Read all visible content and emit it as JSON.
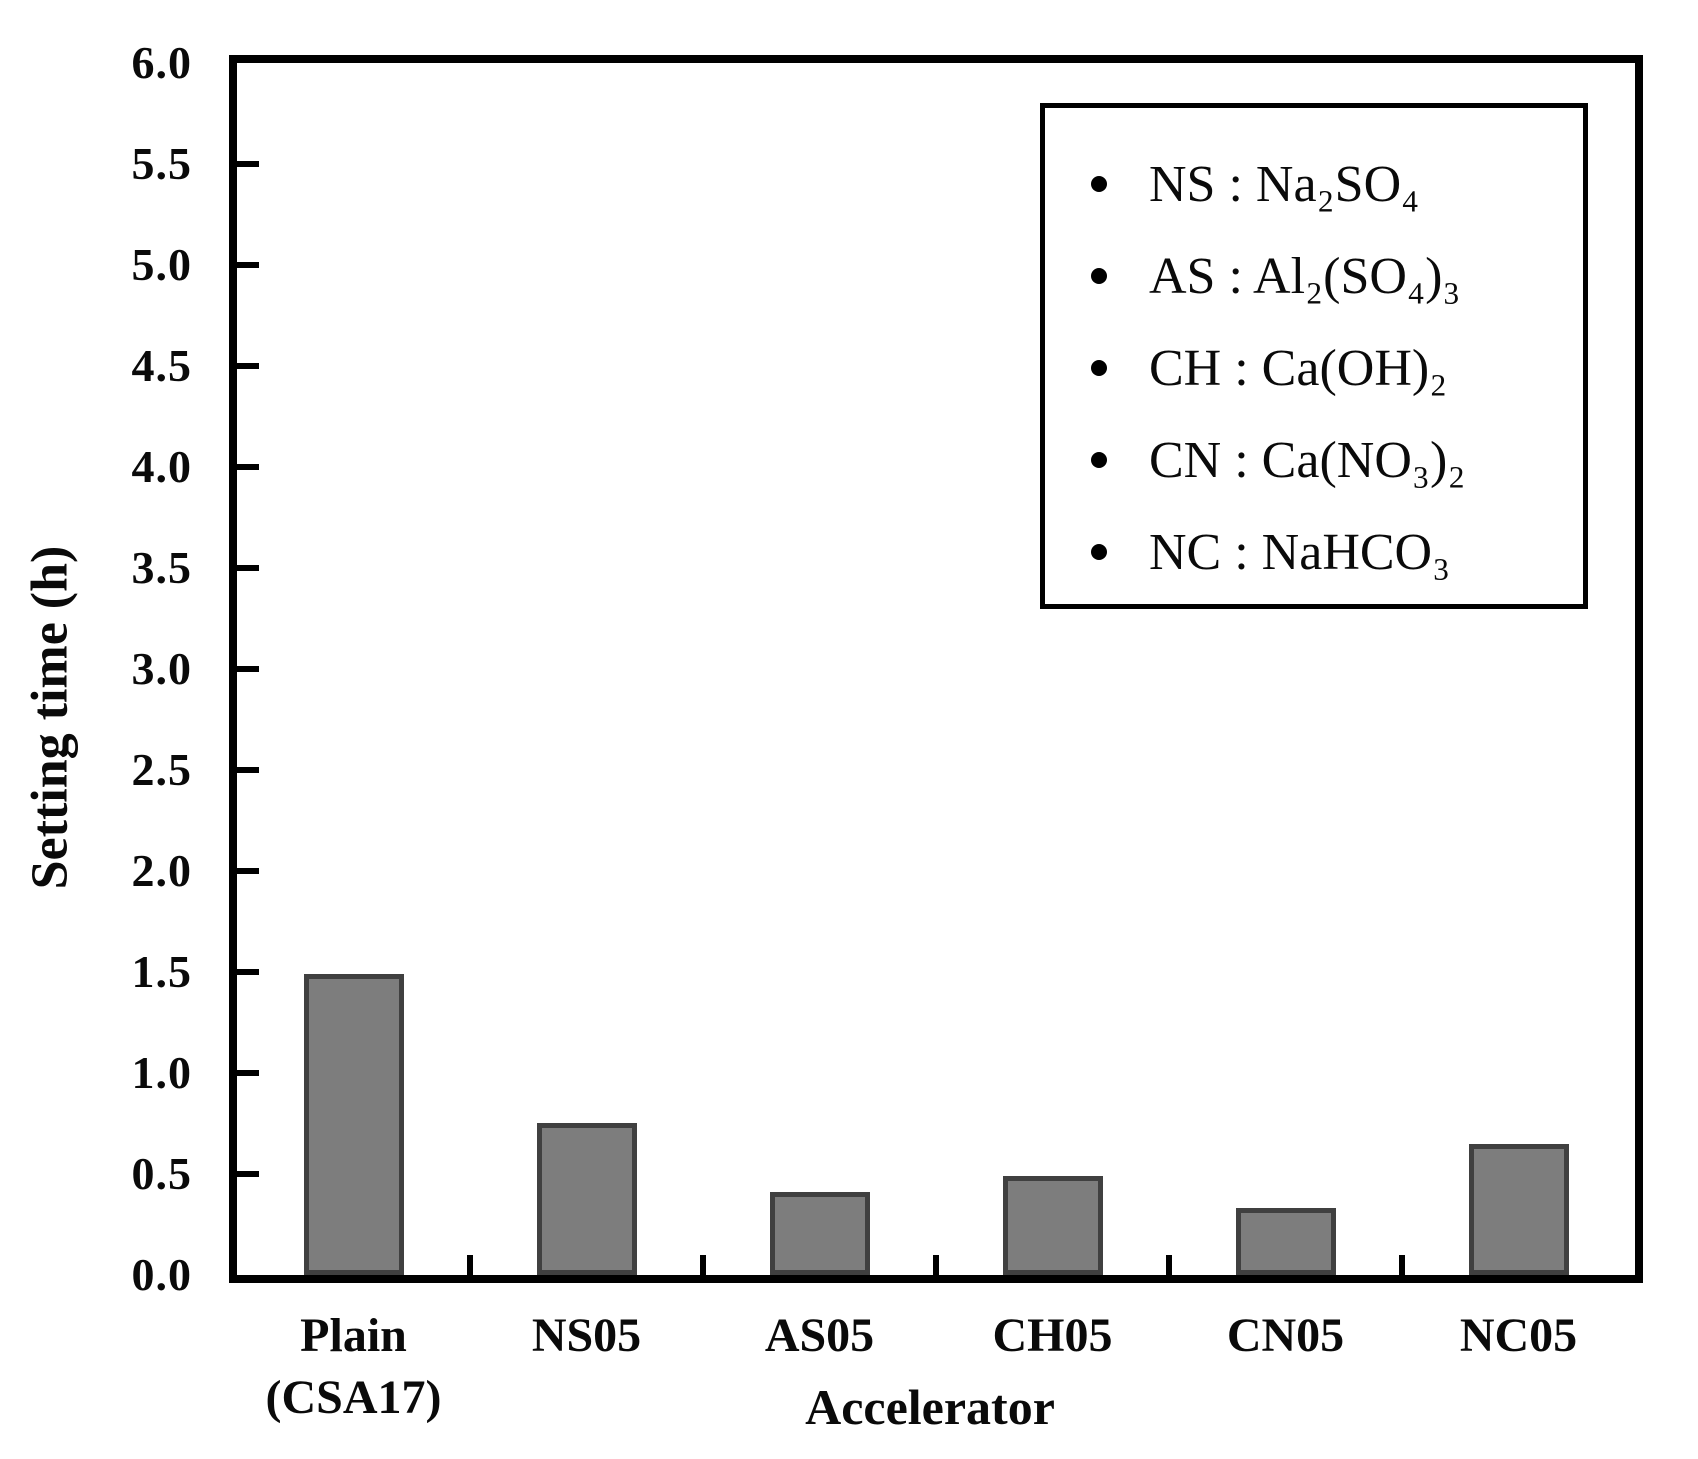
{
  "figure": {
    "background": "#ffffff",
    "frame_color": "#000000"
  },
  "chart_data": {
    "type": "bar",
    "title": "",
    "xlabel": "Accelerator",
    "ylabel": "Setting time (h)",
    "ylim": [
      0,
      6
    ],
    "ytick_step": 0.5,
    "ytick_labels": [
      "0.0",
      "0.5",
      "1.0",
      "1.5",
      "2.0",
      "2.5",
      "3.0",
      "3.5",
      "4.0",
      "4.5",
      "5.0",
      "5.5",
      "6.0"
    ],
    "categories": [
      "Plain (CSA17)",
      "NS05",
      "AS05",
      "CH05",
      "CN05",
      "NC05"
    ],
    "category_lines": [
      [
        "Plain",
        "(CSA17)"
      ],
      [
        "NS05"
      ],
      [
        "AS05"
      ],
      [
        "CH05"
      ],
      [
        "CN05"
      ],
      [
        "NC05"
      ]
    ],
    "values": [
      1.49,
      0.75,
      0.41,
      0.49,
      0.33,
      0.65
    ],
    "bar_fill": "#7d7d7d",
    "bar_border": "#404040",
    "grid": false,
    "legend": {
      "position": "top-right",
      "marker": "bullet-dot",
      "entries": [
        "NS : Na₂SO₄",
        "AS : Al₂(SO₄)₃",
        "CH : Ca(OH)₂",
        "CN : Ca(NO₃)₂",
        "NC : NaHCO₃"
      ]
    }
  }
}
